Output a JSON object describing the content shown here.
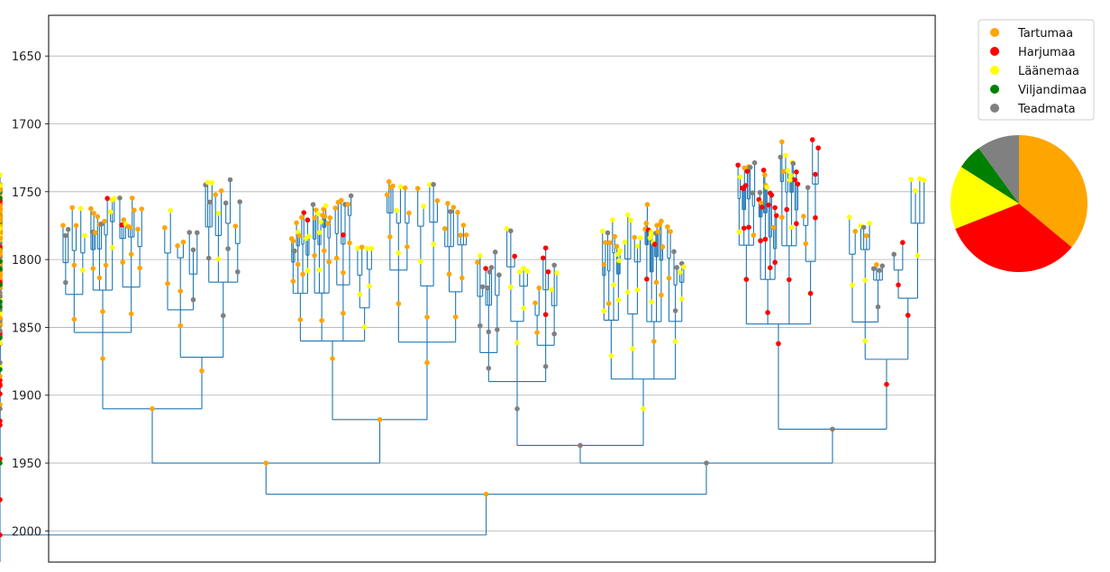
{
  "chart_data": [
    {
      "type": "dendrogram",
      "title": "",
      "xlabel": "",
      "ylabel": "",
      "y_axis": {
        "inverted": true,
        "ylim": [
          1620,
          2023
        ],
        "ticks": [
          1650,
          1700,
          1750,
          1800,
          1850,
          1900,
          1950,
          2000
        ],
        "tick_labels": [
          "1650",
          "1700",
          "1750",
          "1800",
          "1850",
          "1900",
          "1950",
          "2000"
        ],
        "grid": true
      },
      "x_axis": {
        "ticks": [],
        "tick_labels": []
      },
      "legend": {
        "placement": "top-right, outside plot",
        "entries": [
          {
            "label": "Tartumaa",
            "color": "#ffa500"
          },
          {
            "label": "Harjumaa",
            "color": "#ff0000"
          },
          {
            "label": "Läänemaa",
            "color": "#ffff00"
          },
          {
            "label": "Viljandimaa",
            "color": "#008000"
          },
          {
            "label": "Teadmata",
            "color": "#808080"
          }
        ]
      },
      "line_color": "#1f77b4",
      "root": {
        "year": 2003,
        "region": "Harjumaa"
      },
      "main_branches": [
        {
          "year": 1973,
          "region": "Tartumaa",
          "sub": [
            {
              "year": 1950,
              "region": "Tartumaa",
              "sub": [
                {
                  "year": 1910,
                  "region": "Tartumaa",
                  "sub": [
                    {
                      "year": 1873,
                      "region": "Tartumaa"
                    },
                    {
                      "year": 1882,
                      "region": "Tartumaa"
                    }
                  ]
                },
                {
                  "year": 1918,
                  "region": "Tartumaa",
                  "sub": [
                    {
                      "year": 1873,
                      "region": "Tartumaa"
                    },
                    {
                      "year": 1876,
                      "region": "Tartumaa"
                    }
                  ]
                }
              ]
            },
            {
              "year": 1950,
              "region": "Teadmata",
              "sub": [
                {
                  "year": 1937,
                  "region": "Teadmata",
                  "sub": [
                    {
                      "year": 1910,
                      "region": "Teadmata"
                    },
                    {
                      "year": 1910,
                      "region": "Läänemaa"
                    }
                  ]
                },
                {
                  "year": 1925,
                  "region": "Teadmata",
                  "sub": [
                    {
                      "year": 1862,
                      "region": "Harjumaa"
                    },
                    {
                      "year": 1892,
                      "region": "Harjumaa"
                    }
                  ]
                }
              ]
            }
          ]
        },
        {
          "year": 1977,
          "region": "Harjumaa",
          "sub": [
            {
              "year": 1947,
              "region": "Harjumaa",
              "sub": [
                {
                  "year": 1919,
                  "region": "Harjumaa",
                  "sub": [
                    {
                      "year": 1893,
                      "region": "Harjumaa"
                    },
                    {
                      "year": 1899,
                      "region": "Harjumaa"
                    }
                  ]
                },
                {
                  "year": 1922,
                  "region": "Harjumaa",
                  "sub": [
                    {
                      "year": 1889,
                      "region": "Harjumaa"
                    },
                    {
                      "year": 1892,
                      "region": "Harjumaa"
                    }
                  ]
                }
              ]
            },
            {
              "year": 1950,
              "region": "Viljandimaa",
              "sub": [
                {
                  "year": 1907,
                  "region": "Tartumaa",
                  "sub": [
                    {
                      "year": 1879,
                      "region": "Läänemaa"
                    },
                    {
                      "year": 1886,
                      "region": "Tartumaa"
                    }
                  ]
                },
                {
                  "year": 1910,
                  "region": "Teadmata",
                  "sub": [
                    {
                      "year": 1876,
                      "region": "Teadmata"
                    },
                    {
                      "year": 1881,
                      "region": "Viljandimaa"
                    }
                  ]
                }
              ]
            }
          ]
        }
      ]
    },
    {
      "type": "pie",
      "title": "",
      "labels": [
        "Tartumaa",
        "Harjumaa",
        "Läänemaa",
        "Viljandimaa",
        "Teadmata"
      ],
      "values": [
        36,
        33,
        15,
        6,
        10
      ],
      "colors": [
        "#ffa500",
        "#ff0000",
        "#ffff00",
        "#008000",
        "#808080"
      ],
      "start_angle_deg": 90,
      "direction": "clockwise"
    }
  ]
}
